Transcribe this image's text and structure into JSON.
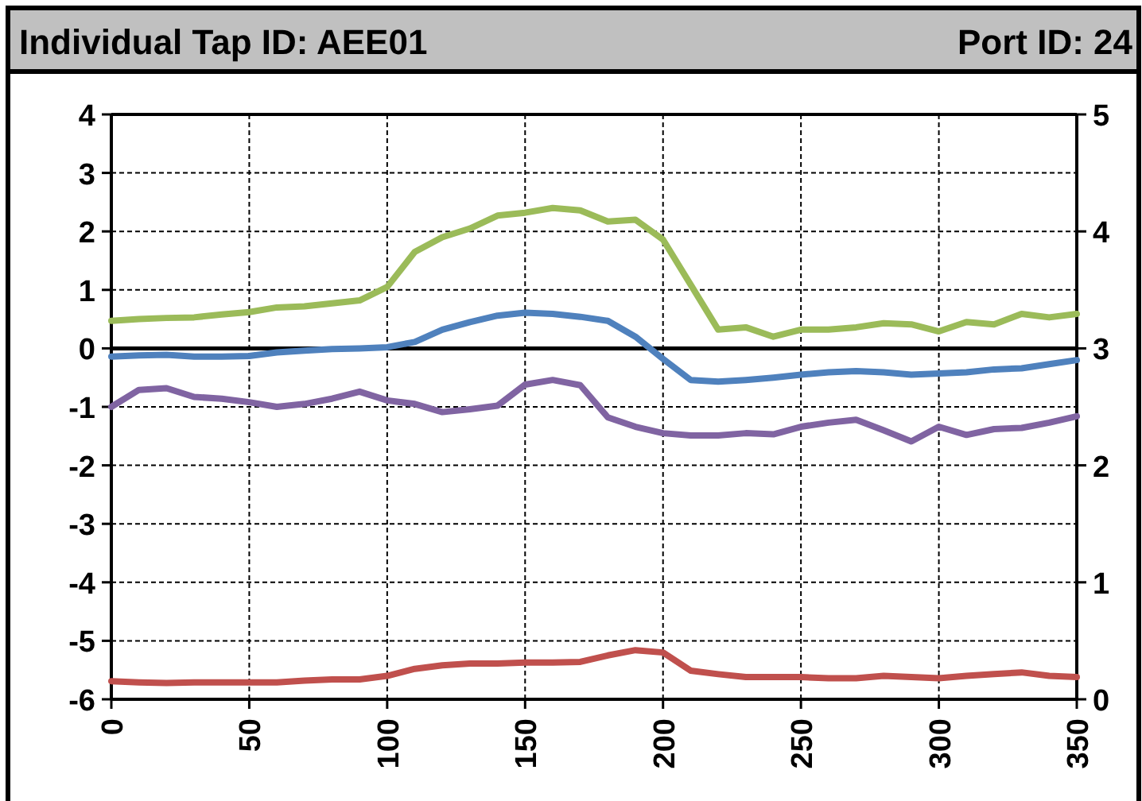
{
  "chart_data": {
    "type": "line",
    "title": "Individual Tap ID: AEE01",
    "subtitle": "Port ID: 24",
    "x": [
      0,
      10,
      20,
      30,
      40,
      50,
      60,
      70,
      80,
      90,
      100,
      110,
      120,
      130,
      140,
      150,
      160,
      170,
      180,
      190,
      200,
      210,
      220,
      230,
      240,
      250,
      260,
      270,
      280,
      290,
      300,
      310,
      320,
      330,
      340,
      350
    ],
    "series": [
      {
        "color": "#9bbb59",
        "values": [
          0.47,
          0.5,
          0.52,
          0.53,
          0.58,
          0.62,
          0.7,
          0.72,
          0.77,
          0.82,
          1.05,
          1.65,
          1.9,
          2.05,
          2.27,
          2.32,
          2.4,
          2.36,
          2.17,
          2.2,
          1.86,
          1.09,
          0.32,
          0.36,
          0.2,
          0.32,
          0.32,
          0.36,
          0.43,
          0.41,
          0.29,
          0.45,
          0.41,
          0.59,
          0.53,
          0.59
        ]
      },
      {
        "color": "#4f81bd",
        "values": [
          -0.14,
          -0.12,
          -0.11,
          -0.14,
          -0.14,
          -0.13,
          -0.07,
          -0.04,
          -0.01,
          0,
          0.02,
          0.11,
          0.32,
          0.45,
          0.56,
          0.61,
          0.59,
          0.54,
          0.47,
          0.2,
          -0.18,
          -0.54,
          -0.57,
          -0.54,
          -0.5,
          -0.45,
          -0.41,
          -0.39,
          -0.41,
          -0.45,
          -0.43,
          -0.41,
          -0.36,
          -0.34,
          -0.27,
          -0.2
        ]
      },
      {
        "color": "#8064a2",
        "values": [
          -1.0,
          -0.71,
          -0.68,
          -0.83,
          -0.86,
          -0.92,
          -1.0,
          -0.95,
          -0.86,
          -0.74,
          -0.89,
          -0.95,
          -1.09,
          -1.04,
          -0.98,
          -0.62,
          -0.54,
          -0.63,
          -1.18,
          -1.34,
          -1.45,
          -1.49,
          -1.49,
          -1.45,
          -1.47,
          -1.34,
          -1.27,
          -1.22,
          -1.4,
          -1.59,
          -1.34,
          -1.48,
          -1.38,
          -1.36,
          -1.27,
          -1.16
        ]
      },
      {
        "color": "#c0504d",
        "values": [
          -5.69,
          -5.71,
          -5.72,
          -5.71,
          -5.71,
          -5.71,
          -5.71,
          -5.68,
          -5.66,
          -5.66,
          -5.6,
          -5.48,
          -5.42,
          -5.39,
          -5.39,
          -5.37,
          -5.37,
          -5.36,
          -5.25,
          -5.16,
          -5.2,
          -5.51,
          -5.57,
          -5.62,
          -5.62,
          -5.62,
          -5.64,
          -5.64,
          -5.6,
          -5.62,
          -5.64,
          -5.6,
          -5.57,
          -5.54,
          -5.6,
          -5.62
        ]
      }
    ],
    "xlim": [
      0,
      350
    ],
    "xticks": [
      0,
      50,
      100,
      150,
      200,
      250,
      300,
      350
    ],
    "ylim": [
      -6,
      4
    ],
    "yticks": [
      -6,
      -5,
      -4,
      -3,
      -2,
      -1,
      0,
      1,
      2,
      3,
      4
    ],
    "y2lim": [
      0,
      5
    ],
    "y2ticks": [
      0,
      1,
      2,
      3,
      4,
      5
    ],
    "grid": true,
    "marker": "none",
    "line_style": "solid"
  }
}
